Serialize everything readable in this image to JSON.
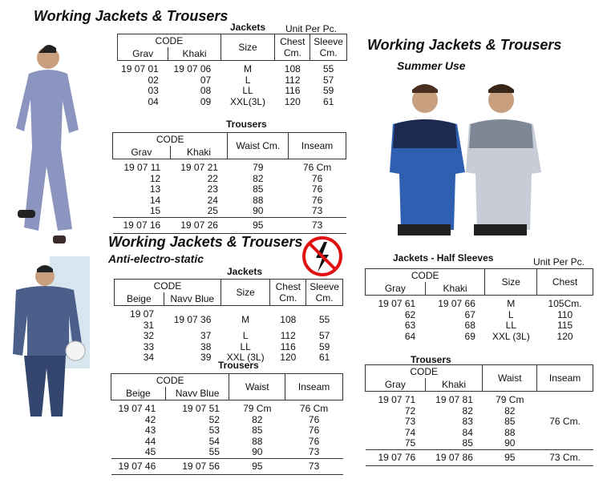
{
  "sections": [
    {
      "title": "Working Jackets & Trousers",
      "jackets": {
        "caption": "Jackets",
        "unit": "Unit Per Pc.",
        "code_header": "CODE",
        "code_columns": [
          "Grav",
          "Khaki"
        ],
        "columns": [
          "Size",
          "Chest Cm.",
          "Sleeve Cm."
        ],
        "rows": [
          [
            "19 07 01",
            "19 07 06",
            "M",
            "108",
            "55"
          ],
          [
            "02",
            "07",
            "L",
            "112",
            "57"
          ],
          [
            "03",
            "08",
            "LL",
            "116",
            "59"
          ],
          [
            "04",
            "09",
            "XXL(3L)",
            "120",
            "61"
          ]
        ]
      },
      "trousers": {
        "caption": "Trousers",
        "code_header": "CODE",
        "code_columns": [
          "Grav",
          "Khaki"
        ],
        "columns": [
          "Waist Cm.",
          "Inseam"
        ],
        "rows": [
          [
            "19 07 11",
            "19 07 21",
            "79",
            "76 Cm"
          ],
          [
            "12",
            "22",
            "82",
            "76"
          ],
          [
            "13",
            "23",
            "85",
            "76"
          ],
          [
            "14",
            "24",
            "88",
            "76"
          ],
          [
            "15",
            "25",
            "90",
            "73"
          ]
        ],
        "last_row": [
          "19 07 16",
          "19 07 26",
          "95",
          "73"
        ]
      }
    },
    {
      "title": "Working Jackets & Trousers",
      "subtitle": "Anti-electro-static",
      "jackets": {
        "caption": "Jackets",
        "code_header": "CODE",
        "code_columns": [
          "Beige",
          "Navv Blue"
        ],
        "columns": [
          "Size",
          "Chest Cm.",
          "Sleeve Cm."
        ],
        "rows": [
          [
            "19 07 31",
            "19 07 36",
            "M",
            "108",
            "55"
          ],
          [
            "32",
            "37",
            "L",
            "112",
            "57"
          ],
          [
            "33",
            "38",
            "LL",
            "116",
            "59"
          ],
          [
            "34",
            "39",
            "XXL (3L)",
            "120",
            "61"
          ]
        ]
      },
      "trousers": {
        "caption": "Trousers",
        "code_header": "CODE",
        "code_columns": [
          "Beige",
          "Navv Blue"
        ],
        "columns": [
          "Waist",
          "Inseam"
        ],
        "rows": [
          [
            "19 07 41",
            "19 07 51",
            "79 Cm",
            "76 Cm"
          ],
          [
            "42",
            "52",
            "82",
            "76"
          ],
          [
            "43",
            "53",
            "85",
            "76"
          ],
          [
            "44",
            "54",
            "88",
            "76"
          ],
          [
            "45",
            "55",
            "90",
            "73"
          ]
        ],
        "last_row": [
          "19 07 46",
          "19 07 56",
          "95",
          "73"
        ]
      }
    },
    {
      "title": "Working Jackets & Trousers",
      "subtitle": "Summer Use",
      "jackets": {
        "caption": "Jackets - Half Sleeves",
        "unit": "Unit Per Pc.",
        "code_header": "CODE",
        "code_columns": [
          "Gray",
          "Khaki"
        ],
        "columns": [
          "Size",
          "Chest"
        ],
        "rows": [
          [
            "19 07 61",
            "19 07 66",
            "M",
            "105Cm."
          ],
          [
            "62",
            "67",
            "L",
            "110"
          ],
          [
            "63",
            "68",
            "LL",
            "115"
          ],
          [
            "64",
            "69",
            "XXL (3L)",
            "120"
          ]
        ]
      },
      "trousers": {
        "caption": "Trousers",
        "code_header": "CODE",
        "code_columns": [
          "Gray",
          "Khaki"
        ],
        "columns": [
          "Waist",
          "Inseam"
        ],
        "rows": [
          [
            "19 07 71",
            "19 07 81",
            "79 Cm"
          ],
          [
            "72",
            "82",
            "82"
          ],
          [
            "73",
            "83",
            "85"
          ],
          [
            "74",
            "84",
            "88"
          ],
          [
            "75",
            "85",
            "90"
          ]
        ],
        "merged_note": "76 Cm.",
        "last_row": [
          "19 07 76",
          "19 07 86",
          "95",
          "73 Cm."
        ]
      }
    }
  ]
}
